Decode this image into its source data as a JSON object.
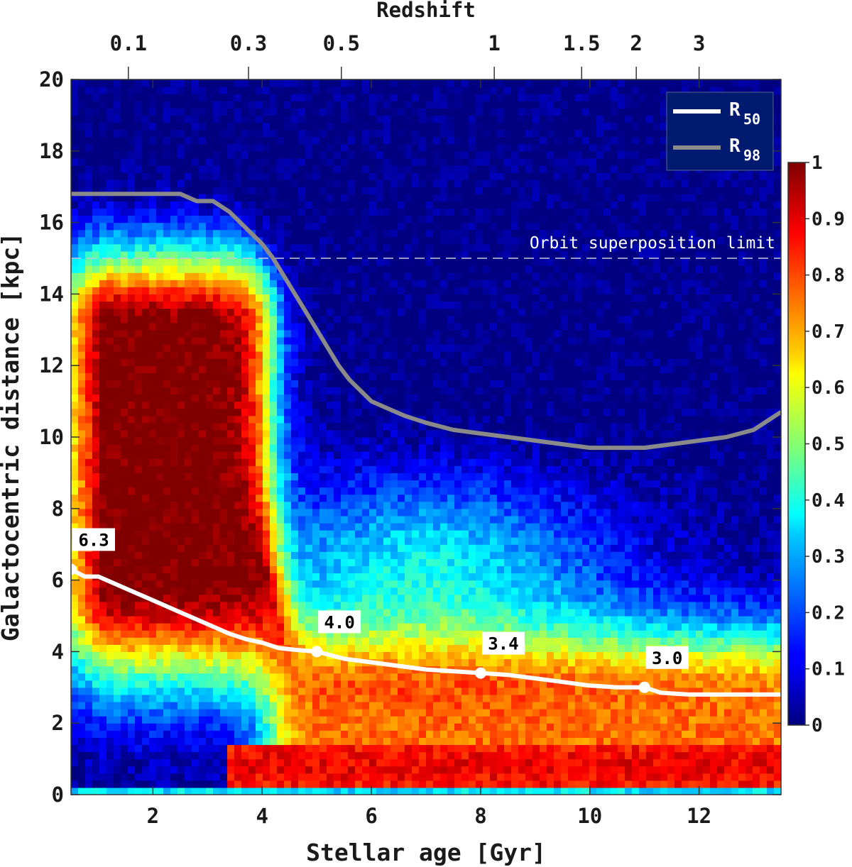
{
  "chart_data": {
    "type": "heatmap",
    "title": "",
    "xlabel": "Stellar age [Gyr]",
    "ylabel": "Galactocentric distance [kpc]",
    "top_axis_label": "Redshift",
    "xlim": [
      0.5,
      13.5
    ],
    "ylim": [
      0,
      20
    ],
    "x_ticks": [
      2,
      4,
      6,
      8,
      10,
      12
    ],
    "y_ticks": [
      0,
      2,
      4,
      6,
      8,
      10,
      12,
      14,
      16,
      18,
      20
    ],
    "top_ticks": [
      {
        "label": "0.1",
        "age": 1.55
      },
      {
        "label": "0.3",
        "age": 3.75
      },
      {
        "label": "0.5",
        "age": 5.45
      },
      {
        "label": "1",
        "age": 8.25
      },
      {
        "label": "1.5",
        "age": 9.85
      },
      {
        "label": "2",
        "age": 10.85
      },
      {
        "label": "3",
        "age": 12.0
      }
    ],
    "colorbar": {
      "range": [
        0,
        1
      ],
      "ticks": [
        "0",
        "0.1",
        "0.2",
        "0.3",
        "0.4",
        "0.5",
        "0.6",
        "0.7",
        "0.8",
        "0.9",
        "1"
      ],
      "colormap": "jet"
    },
    "reference_line": {
      "y": 15,
      "label": "Orbit superposition limit",
      "style": "dashed",
      "color": "#c8c8d8"
    },
    "series": [
      {
        "name": "R50",
        "legend_label": "R",
        "legend_sub": "50",
        "color": "#ffffff",
        "x": [
          0.5,
          0.75,
          1.0,
          1.3,
          1.6,
          1.9,
          2.2,
          2.5,
          2.8,
          3.1,
          3.4,
          3.7,
          4.0,
          4.3,
          4.6,
          5.0,
          5.5,
          6.0,
          6.5,
          7.0,
          7.5,
          8.0,
          8.5,
          9.0,
          9.5,
          10.0,
          10.5,
          11.0,
          11.3,
          11.8,
          12.5,
          13.0,
          13.5
        ],
        "y": [
          6.3,
          6.1,
          6.1,
          5.9,
          5.7,
          5.5,
          5.3,
          5.1,
          4.9,
          4.7,
          4.5,
          4.35,
          4.25,
          4.1,
          4.05,
          4.0,
          3.8,
          3.7,
          3.6,
          3.5,
          3.45,
          3.4,
          3.35,
          3.25,
          3.15,
          3.05,
          3.0,
          3.0,
          2.85,
          2.8,
          2.8,
          2.8,
          2.8
        ]
      },
      {
        "name": "R98",
        "legend_label": "R",
        "legend_sub": "98",
        "color": "#8a8a8a",
        "x": [
          0.5,
          1.0,
          1.5,
          2.0,
          2.5,
          2.8,
          3.1,
          3.4,
          3.6,
          3.8,
          4.0,
          4.2,
          4.4,
          4.6,
          4.8,
          5.0,
          5.2,
          5.4,
          5.6,
          5.8,
          6.0,
          6.3,
          6.6,
          7.0,
          7.5,
          8.0,
          8.5,
          9.0,
          9.5,
          10.0,
          10.5,
          11.0,
          11.5,
          12.0,
          12.5,
          13.0,
          13.3,
          13.5
        ],
        "y": [
          16.8,
          16.8,
          16.8,
          16.8,
          16.8,
          16.6,
          16.6,
          16.3,
          16.0,
          15.7,
          15.4,
          15.0,
          14.5,
          14.0,
          13.5,
          13.0,
          12.5,
          12.0,
          11.6,
          11.3,
          11.0,
          10.8,
          10.6,
          10.4,
          10.2,
          10.1,
          10.0,
          9.9,
          9.8,
          9.7,
          9.7,
          9.7,
          9.8,
          9.9,
          10.0,
          10.2,
          10.5,
          10.7
        ]
      }
    ],
    "markers": [
      {
        "x": 0.5,
        "y": 6.3,
        "label": "6.3"
      },
      {
        "x": 5.0,
        "y": 4.0,
        "label": "4.0"
      },
      {
        "x": 8.0,
        "y": 3.4,
        "label": "3.4"
      },
      {
        "x": 11.0,
        "y": 3.0,
        "label": "3.0"
      }
    ]
  }
}
